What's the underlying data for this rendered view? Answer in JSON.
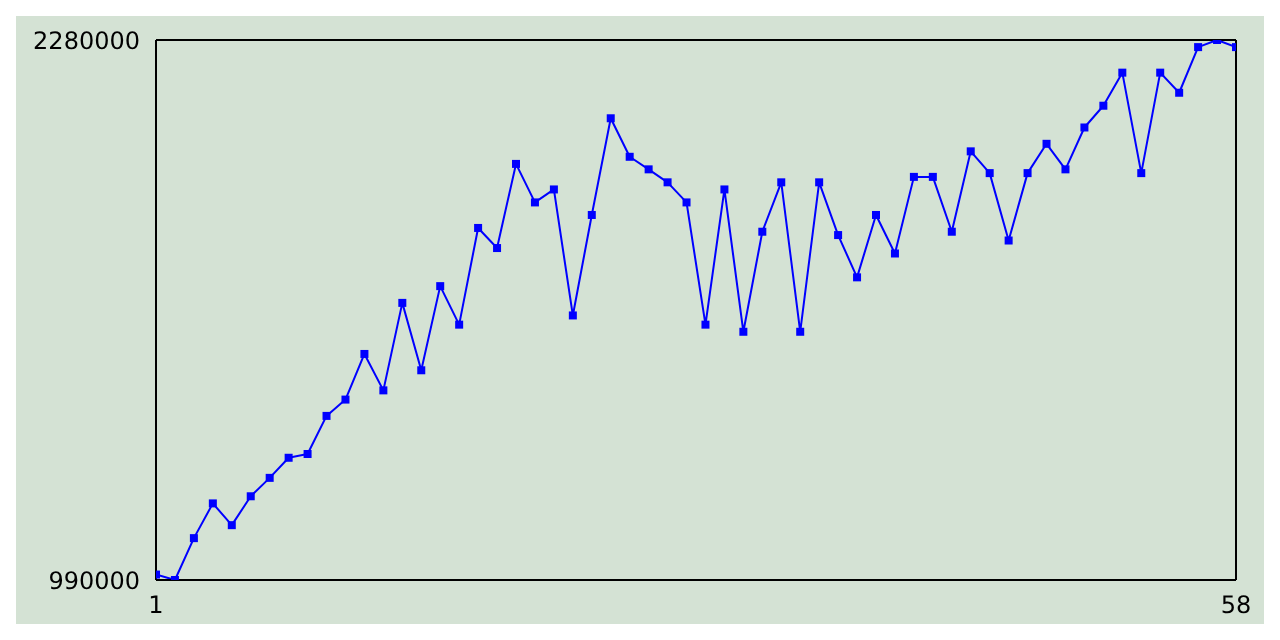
{
  "chart_data": {
    "type": "line",
    "x": [
      1,
      2,
      3,
      4,
      5,
      6,
      7,
      8,
      9,
      10,
      11,
      12,
      13,
      14,
      15,
      16,
      17,
      18,
      19,
      20,
      21,
      22,
      23,
      24,
      25,
      26,
      27,
      28,
      29,
      30,
      31,
      32,
      33,
      34,
      35,
      36,
      37,
      38,
      39,
      40,
      41,
      42,
      43,
      44,
      45,
      46,
      47,
      48,
      49,
      50,
      51,
      52,
      53,
      54,
      55,
      56,
      57,
      58
    ],
    "series": [
      {
        "color": "#0000ff",
        "values": [
          1003000,
          990000,
          1090000,
          1173000,
          1121000,
          1190000,
          1234000,
          1282000,
          1291000,
          1382000,
          1421000,
          1530000,
          1443000,
          1652000,
          1491000,
          1692000,
          1600000,
          1831000,
          1783000,
          1984000,
          1892000,
          1923000,
          1622000,
          1862000,
          2093000,
          2001000,
          1971000,
          1940000,
          1892000,
          1600000,
          1923000,
          1583000,
          1822000,
          1940000,
          1583000,
          1940000,
          1814000,
          1713000,
          1862000,
          1770000,
          1953000,
          1953000,
          1822000,
          2014000,
          1962000,
          1801000,
          1962000,
          2032000,
          1971000,
          2071000,
          2123000,
          2202000,
          1962000,
          2202000,
          2154000,
          2263000,
          2280000,
          2263000
        ]
      }
    ],
    "xlim": [
      1,
      58
    ],
    "xticks": [
      1,
      58
    ],
    "ylim": [
      990000,
      2280000
    ],
    "yticks": [
      990000,
      2280000
    ],
    "marker": "square",
    "line_style": "solid",
    "legend": false
  }
}
